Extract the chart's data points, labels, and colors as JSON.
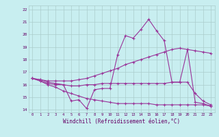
{
  "xlabel": "Windchill (Refroidissement éolien,°C)",
  "bg_color": "#c8eef0",
  "grid_color": "#aacccc",
  "line_color": "#993399",
  "xlim": [
    -0.5,
    23.5
  ],
  "ylim": [
    13.8,
    22.3
  ],
  "xticks": [
    0,
    1,
    2,
    3,
    4,
    5,
    6,
    7,
    8,
    9,
    10,
    11,
    12,
    13,
    14,
    15,
    16,
    17,
    18,
    19,
    20,
    21,
    22,
    23
  ],
  "yticks": [
    14,
    15,
    16,
    17,
    18,
    19,
    20,
    21,
    22
  ],
  "line1_y": [
    16.5,
    16.3,
    16.1,
    16.0,
    16.0,
    14.7,
    14.8,
    14.1,
    15.6,
    15.7,
    15.7,
    18.4,
    19.9,
    19.7,
    20.4,
    21.2,
    20.3,
    19.5,
    16.2,
    16.2,
    18.8,
    14.6,
    14.5,
    14.3
  ],
  "line2_y": [
    16.5,
    16.4,
    16.3,
    16.3,
    16.3,
    16.3,
    16.4,
    16.5,
    16.7,
    16.9,
    17.1,
    17.3,
    17.6,
    17.8,
    18.0,
    18.2,
    18.4,
    18.6,
    18.8,
    18.9,
    18.8,
    18.7,
    18.6,
    18.5
  ],
  "line3_y": [
    16.5,
    16.4,
    16.2,
    16.1,
    16.0,
    15.9,
    15.9,
    16.0,
    16.0,
    16.1,
    16.1,
    16.1,
    16.1,
    16.1,
    16.1,
    16.1,
    16.1,
    16.1,
    16.2,
    16.2,
    16.2,
    15.3,
    14.7,
    14.4
  ],
  "line4_y": [
    16.5,
    16.3,
    16.0,
    15.8,
    15.5,
    15.3,
    15.1,
    14.9,
    14.8,
    14.7,
    14.6,
    14.5,
    14.5,
    14.5,
    14.5,
    14.5,
    14.4,
    14.4,
    14.4,
    14.4,
    14.4,
    14.4,
    14.4,
    14.3
  ]
}
